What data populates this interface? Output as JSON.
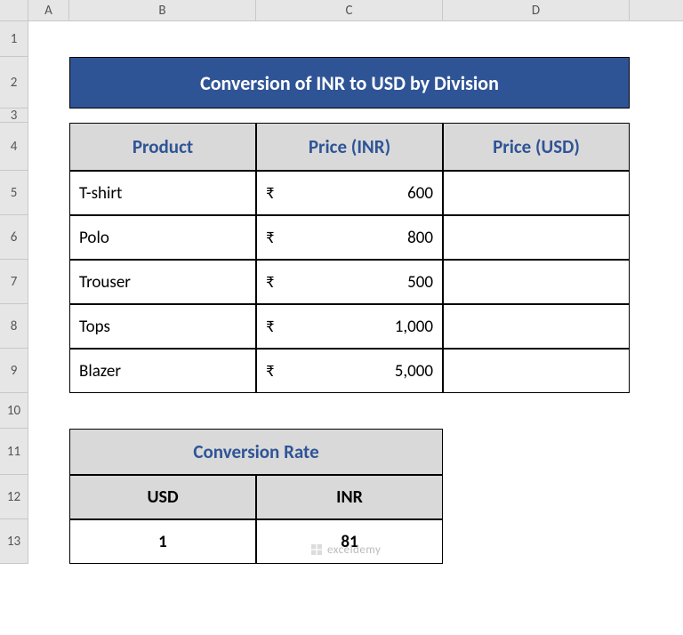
{
  "columns": {
    "A": 46,
    "B": 210,
    "C": 210,
    "D": 210
  },
  "col_labels": [
    "A",
    "B",
    "C",
    "D"
  ],
  "rows": {
    "heights": [
      40,
      58,
      16,
      54,
      50,
      50,
      50,
      50,
      50,
      40,
      52,
      50,
      50
    ],
    "labels": [
      "1",
      "2",
      "3",
      "4",
      "5",
      "6",
      "7",
      "8",
      "9",
      "10",
      "11",
      "12",
      "13"
    ]
  },
  "title": "Conversion of INR to USD by Division",
  "title_bg": "#2f5496",
  "title_color": "#ffffff",
  "header_bg": "#d9d9d9",
  "header_color": "#2f5496",
  "table1": {
    "headers": [
      "Product",
      "Price (INR)",
      "Price (USD)"
    ],
    "rows": [
      {
        "product": "T-shirt",
        "inr_sym": "₹",
        "inr_val": "600",
        "usd": ""
      },
      {
        "product": "Polo",
        "inr_sym": "₹",
        "inr_val": "800",
        "usd": ""
      },
      {
        "product": "Trouser",
        "inr_sym": "₹",
        "inr_val": "500",
        "usd": ""
      },
      {
        "product": "Tops",
        "inr_sym": "₹",
        "inr_val": "1,000",
        "usd": ""
      },
      {
        "product": "Blazer",
        "inr_sym": "₹",
        "inr_val": "5,000",
        "usd": ""
      }
    ]
  },
  "table2": {
    "title": "Conversion Rate",
    "headers": [
      "USD",
      "INR"
    ],
    "values": [
      "1",
      "81"
    ]
  },
  "watermark": "exceldemy"
}
